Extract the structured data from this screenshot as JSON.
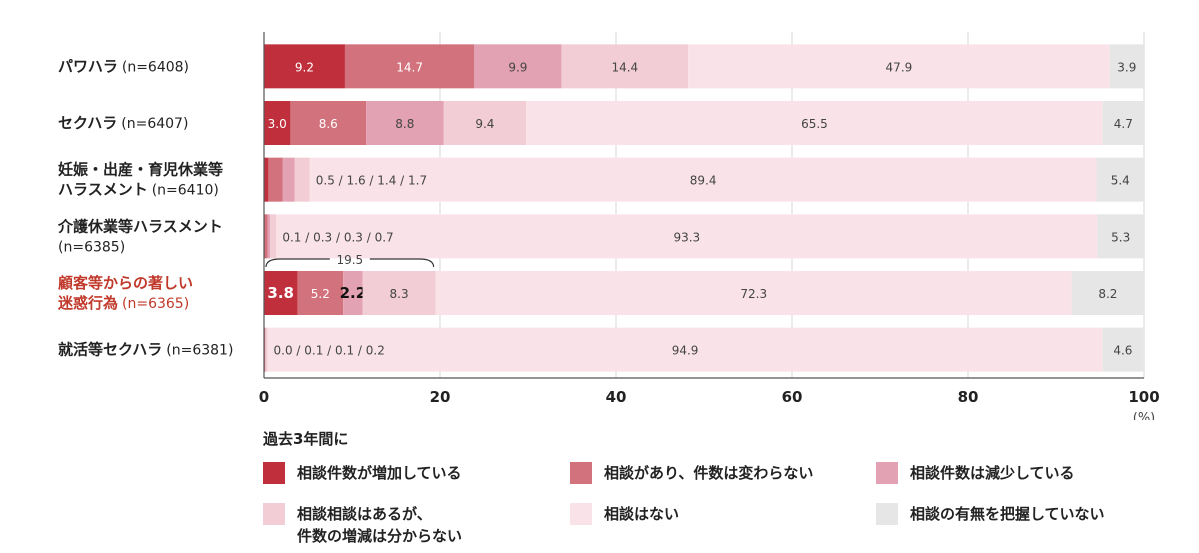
{
  "chart_data": {
    "type": "bar",
    "orientation": "horizontal",
    "stacked": true,
    "unit": "(%)",
    "xlim": [
      0,
      100
    ],
    "x_ticks": [
      0,
      20,
      40,
      60,
      80,
      100
    ],
    "grid": true,
    "categories": [
      {
        "label": "パワハラ",
        "n": "(n=6408)"
      },
      {
        "label": "セクハラ",
        "n": "(n=6407)"
      },
      {
        "label_lines": [
          "妊娠・出産・育児休業等",
          "ハラスメント"
        ],
        "n": "(n=6410)"
      },
      {
        "label_lines": [
          "介護休業等ハラスメント"
        ],
        "n": "(n=6385)"
      },
      {
        "label_lines": [
          "顧客等からの著しい",
          "迷惑行為"
        ],
        "n": "(n=6365)",
        "highlight": true
      },
      {
        "label": "就活等セクハラ",
        "n": "(n=6381)"
      }
    ],
    "series": [
      {
        "name": "相談件数が増加している",
        "color": "#c0303c",
        "values": [
          9.2,
          3.0,
          0.5,
          0.1,
          3.8,
          0.0
        ]
      },
      {
        "name": "相談があり、件数は変わらない",
        "color": "#d2727c",
        "values": [
          14.7,
          8.6,
          1.6,
          0.3,
          5.2,
          0.1
        ]
      },
      {
        "name": "相談件数は減少している",
        "color": "#e3a2b3",
        "values": [
          9.9,
          8.8,
          1.4,
          0.3,
          2.2,
          0.1
        ]
      },
      {
        "name": "相談相談はあるが、件数の増減は分からない",
        "name_lines": [
          "相談相談はあるが、",
          "件数の増減は分からない"
        ],
        "color": "#f2cdd5",
        "values": [
          14.4,
          9.4,
          1.7,
          0.7,
          8.3,
          0.2
        ]
      },
      {
        "name": "相談はない",
        "color": "#f9e3e8",
        "values": [
          47.9,
          65.5,
          89.4,
          93.3,
          72.3,
          94.9
        ]
      },
      {
        "name": "相談の有無を把握していない",
        "color": "#e6e6e6",
        "values": [
          3.9,
          4.7,
          5.4,
          5.3,
          8.2,
          4.6
        ]
      }
    ],
    "combined_labels": [
      "0.5 / 1.6 / 1.4 / 1.7",
      "0.1 / 0.3 / 0.3 / 0.7",
      "0.0 / 0.1 / 0.1 / 0.2"
    ],
    "annotation": {
      "row": 4,
      "text": "19.5",
      "from": 0,
      "to": 19.5
    },
    "legend_title": "過去3年間に"
  }
}
